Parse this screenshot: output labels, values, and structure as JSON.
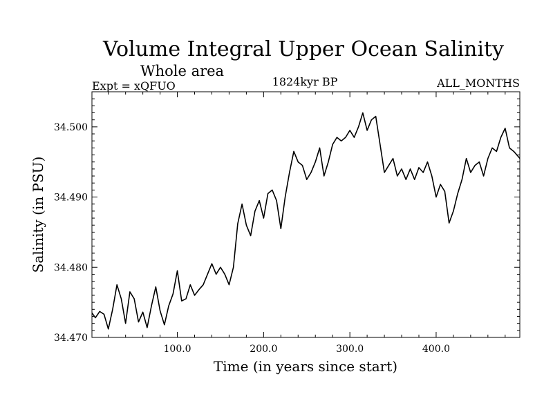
{
  "chart_data": {
    "type": "line",
    "title": "Volume Integral Upper Ocean Salinity",
    "subtitle": "Whole area",
    "header_left": "Expt = xQFUO",
    "header_center": "1824kyr BP",
    "header_right": "ALL_MONTHS",
    "xlabel": "Time (in years since start)",
    "ylabel": "Salinity (in PSU)",
    "xlim": [
      1,
      497
    ],
    "ylim": [
      34.47,
      34.505
    ],
    "x_ticks": [
      100,
      200,
      300,
      400
    ],
    "x_tick_labels": [
      "100.0",
      "200.0",
      "300.0",
      "400.0"
    ],
    "y_ticks": [
      34.47,
      34.48,
      34.49,
      34.5
    ],
    "y_tick_labels": [
      "34.470",
      "34.480",
      "34.490",
      "34.500"
    ],
    "series": [
      {
        "name": "Salinity",
        "color": "#000000",
        "x": [
          1,
          5,
          10,
          15,
          20,
          25,
          30,
          35,
          40,
          45,
          50,
          55,
          60,
          65,
          70,
          75,
          80,
          85,
          90,
          95,
          100,
          105,
          110,
          115,
          120,
          125,
          130,
          135,
          140,
          145,
          150,
          155,
          160,
          165,
          170,
          175,
          180,
          185,
          190,
          195,
          200,
          205,
          210,
          215,
          220,
          225,
          230,
          235,
          240,
          245,
          250,
          255,
          260,
          265,
          270,
          275,
          280,
          285,
          290,
          295,
          300,
          305,
          310,
          315,
          320,
          325,
          330,
          335,
          340,
          345,
          350,
          355,
          360,
          365,
          370,
          375,
          380,
          385,
          390,
          395,
          400,
          405,
          410,
          415,
          420,
          425,
          430,
          435,
          440,
          445,
          450,
          455,
          460,
          465,
          470,
          475,
          480,
          485,
          490,
          495,
          497
        ],
        "values": [
          34.4735,
          34.4728,
          34.4737,
          34.4733,
          34.4712,
          34.474,
          34.4775,
          34.4755,
          34.472,
          34.4765,
          34.4755,
          34.4722,
          34.4736,
          34.4714,
          34.4745,
          34.4772,
          34.4738,
          34.4718,
          34.4745,
          34.4762,
          34.4795,
          34.4752,
          34.4755,
          34.4775,
          34.476,
          34.4768,
          34.4775,
          34.479,
          34.4805,
          34.479,
          34.48,
          34.479,
          34.4775,
          34.48,
          34.4862,
          34.489,
          34.486,
          34.4845,
          34.488,
          34.4895,
          34.487,
          34.4905,
          34.491,
          34.4895,
          34.4855,
          34.49,
          34.4935,
          34.4965,
          34.495,
          34.4945,
          34.4925,
          34.4935,
          34.495,
          34.497,
          34.493,
          34.495,
          34.4975,
          34.4985,
          34.498,
          34.4985,
          34.4995,
          34.4985,
          34.5,
          34.502,
          34.4995,
          34.501,
          34.5015,
          34.4975,
          34.4935,
          34.4945,
          34.4955,
          34.493,
          34.494,
          34.4925,
          34.494,
          34.4925,
          34.4942,
          34.4935,
          34.495,
          34.493,
          34.49,
          34.4918,
          34.4908,
          34.4863,
          34.488,
          34.4905,
          34.4925,
          34.4955,
          34.4935,
          34.4945,
          34.495,
          34.493,
          34.4955,
          34.497,
          34.4965,
          34.4985,
          34.4998,
          34.497,
          34.4965,
          34.4958,
          34.4955
        ]
      }
    ]
  }
}
